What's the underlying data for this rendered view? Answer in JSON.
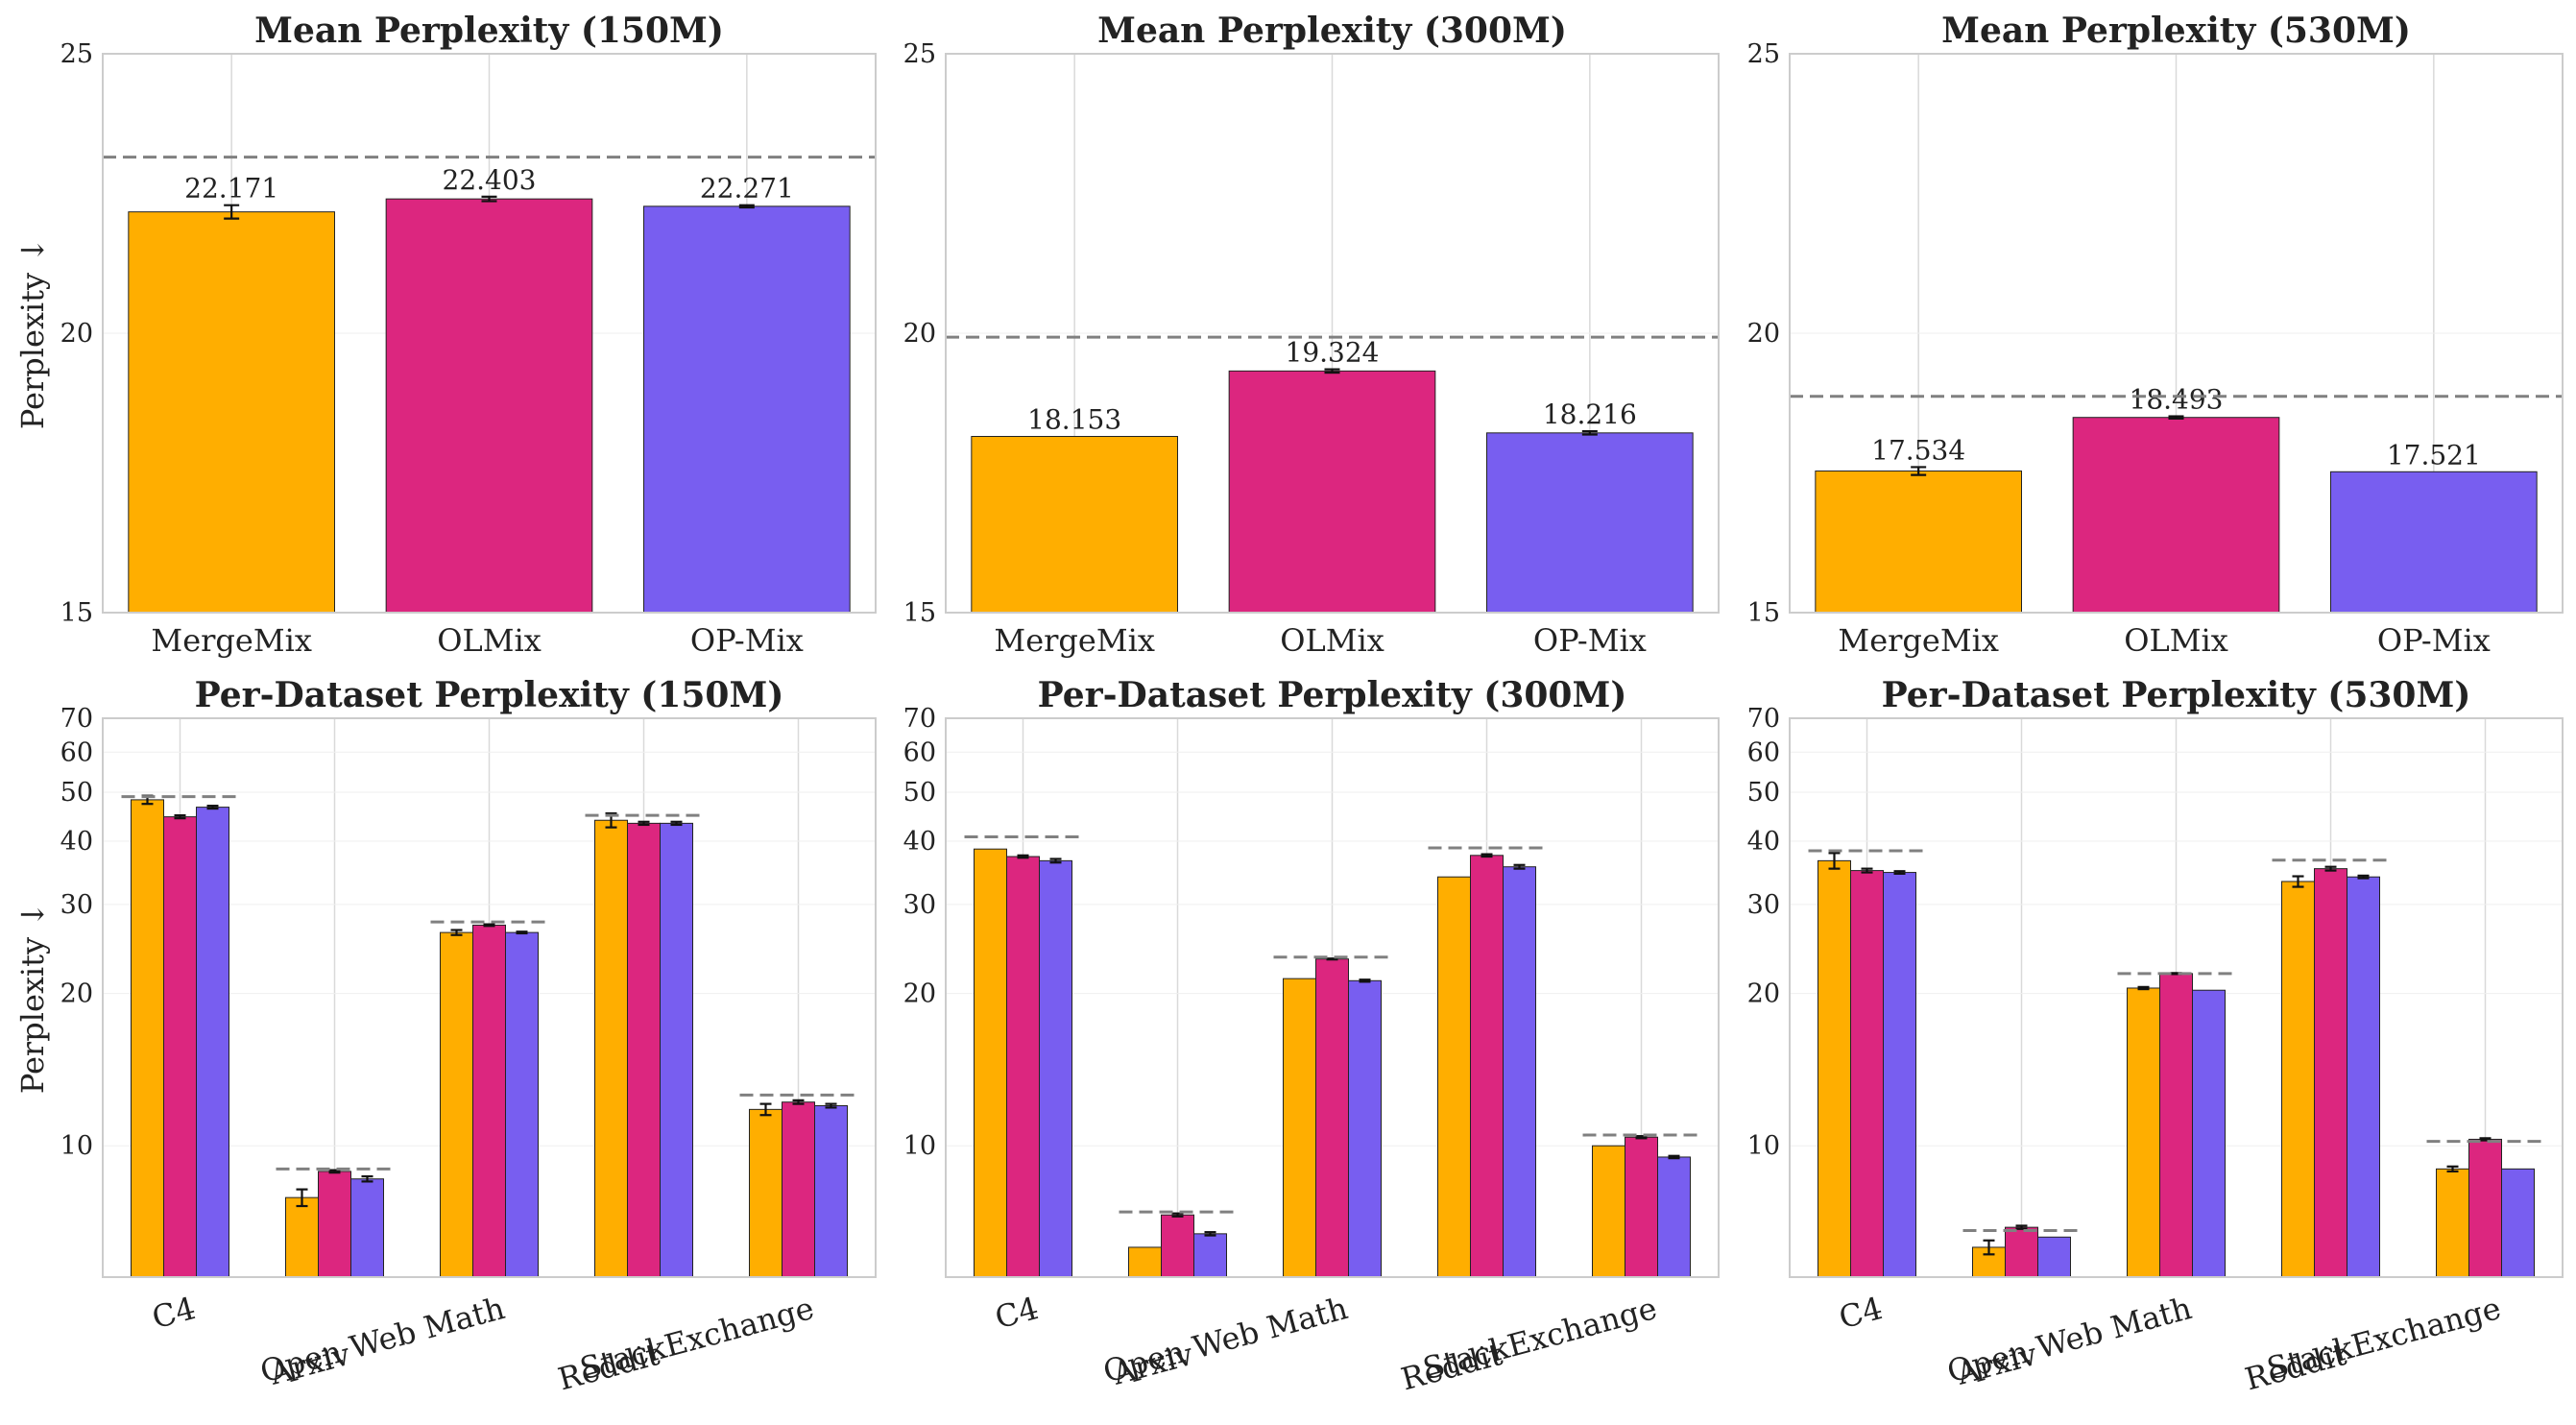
{
  "colors": {
    "MergeMix": "#ffae00",
    "OLMix": "#dc267f",
    "OP-Mix": "#785ef0",
    "reference_line": "#808080",
    "grid": "#d9d9d9",
    "frame": "#cccccc"
  },
  "chart_data": [
    {
      "type": "bar",
      "title": "Mean Perplexity (150M)",
      "ylabel": "Perplexity ↓",
      "yscale": "linear",
      "ylim": [
        15,
        25
      ],
      "yticks": [
        "15",
        "20",
        "25"
      ],
      "categories": [
        "MergeMix",
        "OLMix",
        "OP-Mix"
      ],
      "values": [
        22.171,
        22.403,
        22.271
      ],
      "value_labels": [
        "22.171",
        "22.403",
        "22.271"
      ],
      "errors": [
        0.12,
        0.04,
        0.02
      ],
      "reference_line": 23.15,
      "grid": "vertical"
    },
    {
      "type": "bar",
      "title": "Mean Perplexity (300M)",
      "ylabel": "",
      "yscale": "linear",
      "ylim": [
        15,
        25
      ],
      "yticks": [
        "15",
        "20",
        "25"
      ],
      "categories": [
        "MergeMix",
        "OLMix",
        "OP-Mix"
      ],
      "values": [
        18.153,
        19.324,
        18.216
      ],
      "value_labels": [
        "18.153",
        "19.324",
        "18.216"
      ],
      "errors": [
        0,
        0.03,
        0.03
      ],
      "reference_line": 19.93,
      "grid": "vertical"
    },
    {
      "type": "bar",
      "title": "Mean Perplexity (530M)",
      "ylabel": "",
      "yscale": "linear",
      "ylim": [
        15,
        25
      ],
      "yticks": [
        "15",
        "20",
        "25"
      ],
      "categories": [
        "MergeMix",
        "OLMix",
        "OP-Mix"
      ],
      "values": [
        17.534,
        18.493,
        17.521
      ],
      "value_labels": [
        "17.534",
        "18.493",
        "17.521"
      ],
      "errors": [
        0.07,
        0.02,
        0
      ],
      "reference_line": 18.87,
      "grid": "vertical"
    },
    {
      "type": "bar",
      "title": "Per-Dataset Perplexity (150M)",
      "ylabel": "Perplexity ↓",
      "yscale": "log",
      "ylim": [
        5.5,
        70
      ],
      "yticks": [
        "10",
        "20",
        "30",
        "40",
        "50",
        "60",
        "70"
      ],
      "categories": [
        "C4",
        "Arxiv",
        "Open Web Math",
        "Reddit",
        "StackExchange"
      ],
      "series": [
        {
          "name": "MergeMix",
          "values": [
            48.3,
            7.9,
            26.4,
            44.0,
            11.8
          ],
          "errors": [
            0.9,
            0.3,
            0.3,
            1.4,
            0.3
          ]
        },
        {
          "name": "OLMix",
          "values": [
            44.7,
            8.9,
            27.3,
            43.4,
            12.2
          ],
          "errors": [
            0.3,
            0.05,
            0.1,
            0.3,
            0.1
          ]
        },
        {
          "name": "OP-Mix",
          "values": [
            46.7,
            8.6,
            26.4,
            43.4,
            12.0
          ],
          "errors": [
            0.3,
            0.1,
            0.1,
            0.3,
            0.1
          ]
        }
      ],
      "reference_lines": [
        49.0,
        9.0,
        27.7,
        45.0,
        12.6
      ],
      "grid": "vertical"
    },
    {
      "type": "bar",
      "title": "Per-Dataset Perplexity (300M)",
      "ylabel": "",
      "yscale": "log",
      "ylim": [
        5.5,
        70
      ],
      "yticks": [
        "10",
        "20",
        "30",
        "40",
        "50",
        "60",
        "70"
      ],
      "categories": [
        "C4",
        "Arxiv",
        "Open Web Math",
        "Reddit",
        "StackExchange"
      ],
      "series": [
        {
          "name": "MergeMix",
          "values": [
            38.6,
            6.3,
            21.4,
            34.0,
            10.0
          ],
          "errors": [
            0,
            0,
            0,
            0,
            0
          ]
        },
        {
          "name": "OLMix",
          "values": [
            37.3,
            7.3,
            23.4,
            37.5,
            10.4
          ],
          "errors": [
            0.2,
            0.05,
            0.05,
            0.2,
            0.05
          ]
        },
        {
          "name": "OP-Mix",
          "values": [
            36.6,
            6.7,
            21.2,
            35.6,
            9.5
          ],
          "errors": [
            0.3,
            0.05,
            0.1,
            0.3,
            0.05
          ]
        }
      ],
      "reference_lines": [
        40.8,
        7.4,
        23.6,
        38.8,
        10.5
      ],
      "grid": "vertical"
    },
    {
      "type": "bar",
      "title": "Per-Dataset Perplexity (530M)",
      "ylabel": "",
      "yscale": "log",
      "ylim": [
        5.5,
        70
      ],
      "yticks": [
        "10",
        "20",
        "30",
        "40",
        "50",
        "60",
        "70"
      ],
      "categories": [
        "C4",
        "Arxiv",
        "Open Web Math",
        "Reddit",
        "StackExchange"
      ],
      "series": [
        {
          "name": "MergeMix",
          "values": [
            36.6,
            6.3,
            20.5,
            33.3,
            9.0
          ],
          "errors": [
            1.3,
            0.2,
            0.1,
            0.8,
            0.1
          ]
        },
        {
          "name": "OLMix",
          "values": [
            35.0,
            6.9,
            21.9,
            35.3,
            10.3
          ],
          "errors": [
            0.3,
            0.05,
            0.05,
            0.3,
            0.05
          ]
        },
        {
          "name": "OP-Mix",
          "values": [
            34.7,
            6.6,
            20.3,
            34.0,
            9.0
          ],
          "errors": [
            0.2,
            0,
            0,
            0.2,
            0
          ]
        }
      ],
      "reference_lines": [
        38.3,
        6.8,
        21.9,
        36.7,
        10.2
      ],
      "grid": "vertical"
    }
  ]
}
